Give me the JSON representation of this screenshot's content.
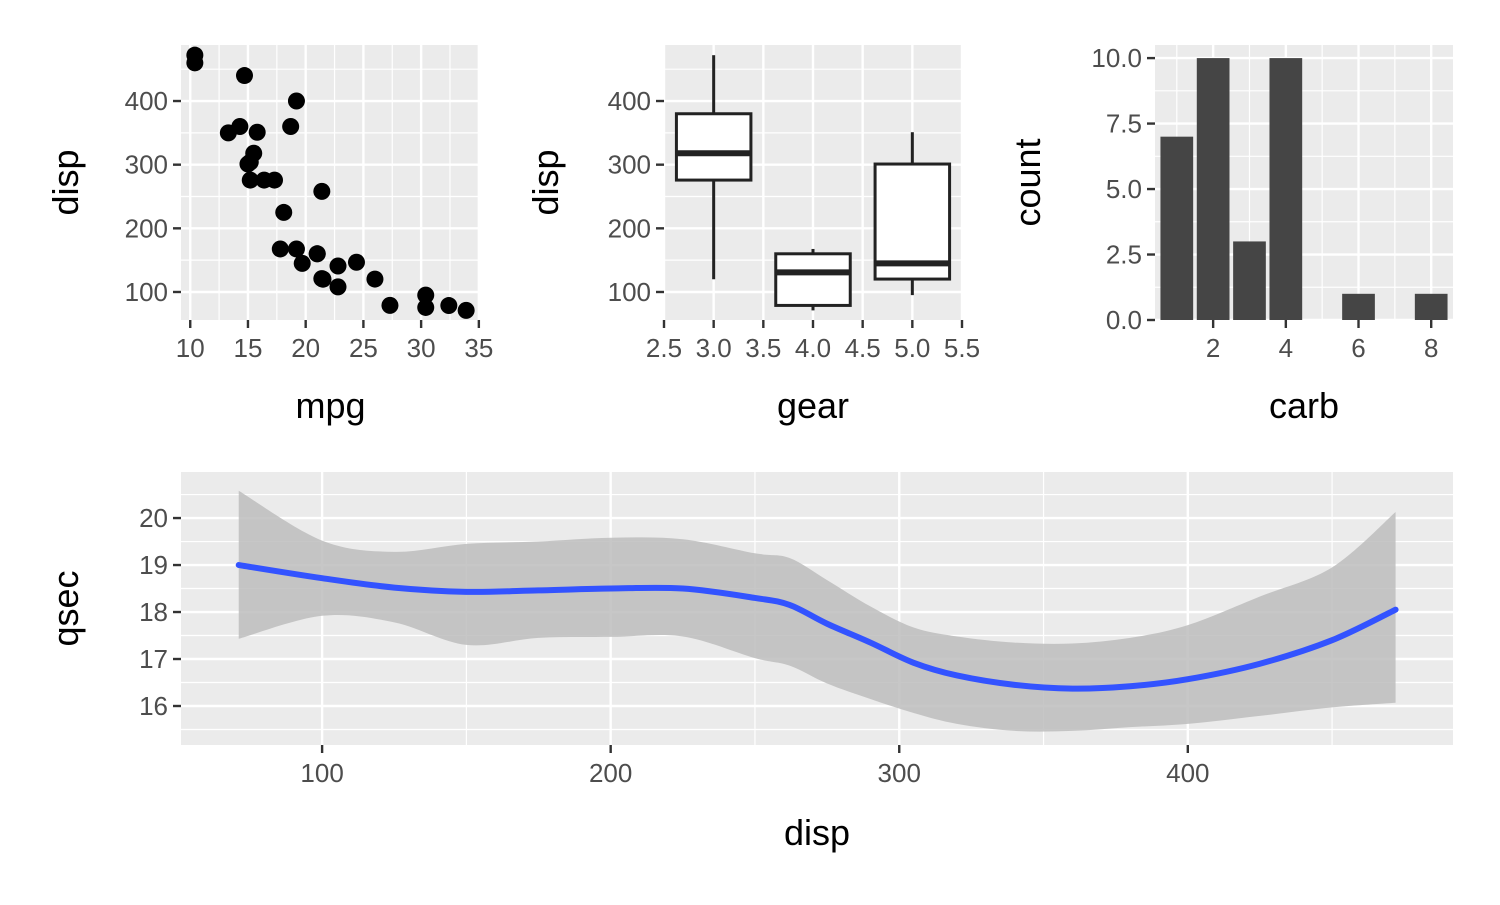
{
  "colors": {
    "panel": "#ebebeb",
    "grid": "#ffffff",
    "axis_text": "#4d4d4d",
    "title_text": "#000000",
    "point": "#000000",
    "box_stroke": "#222222",
    "bar_fill": "#454545",
    "smooth_line": "#3353ff",
    "ribbon": "#bdbdbd"
  },
  "chart_data": [
    {
      "type": "scatter",
      "xlabel": "mpg",
      "ylabel": "disp",
      "xlim": [
        9.2,
        35.1
      ],
      "ylim": [
        56,
        488
      ],
      "xticks": [
        10,
        15,
        20,
        25,
        30,
        35
      ],
      "xtick_labels": [
        "10",
        "15",
        "20",
        "25",
        "30",
        "35"
      ],
      "yticks": [
        100,
        200,
        300,
        400
      ],
      "ytick_labels": [
        "100",
        "200",
        "300",
        "400"
      ],
      "points": [
        [
          21.0,
          160
        ],
        [
          21.0,
          160
        ],
        [
          22.8,
          108
        ],
        [
          21.4,
          258
        ],
        [
          18.7,
          360
        ],
        [
          18.1,
          225
        ],
        [
          14.3,
          360
        ],
        [
          24.4,
          146.7
        ],
        [
          22.8,
          140.8
        ],
        [
          19.2,
          167.6
        ],
        [
          17.8,
          167.6
        ],
        [
          16.4,
          275.8
        ],
        [
          17.3,
          275.8
        ],
        [
          15.2,
          275.8
        ],
        [
          10.4,
          472
        ],
        [
          10.4,
          460
        ],
        [
          14.7,
          440
        ],
        [
          32.4,
          78.7
        ],
        [
          30.4,
          75.7
        ],
        [
          33.9,
          71.1
        ],
        [
          21.5,
          120.1
        ],
        [
          15.5,
          318
        ],
        [
          15.2,
          304
        ],
        [
          13.3,
          350
        ],
        [
          19.2,
          400
        ],
        [
          27.3,
          79
        ],
        [
          26.0,
          120.3
        ],
        [
          30.4,
          95.1
        ],
        [
          15.8,
          351
        ],
        [
          19.7,
          145
        ],
        [
          15.0,
          301
        ],
        [
          21.4,
          121
        ]
      ]
    },
    {
      "type": "box",
      "xlabel": "gear",
      "ylabel": "disp",
      "xlim": [
        2.5,
        5.5
      ],
      "ylim": [
        56,
        488
      ],
      "xticks": [
        2.5,
        3.0,
        3.5,
        4.0,
        4.5,
        5.0,
        5.5
      ],
      "xtick_labels": [
        "2.5",
        "3.0",
        "3.5",
        "4.0",
        "4.5",
        "5.0",
        "5.5"
      ],
      "yticks": [
        100,
        200,
        300,
        400
      ],
      "ytick_labels": [
        "100",
        "200",
        "300",
        "400"
      ],
      "box_width": 0.75,
      "boxes": [
        {
          "x": 3,
          "lower": 120.1,
          "q1": 275.8,
          "median": 318,
          "q3": 380,
          "upper": 472
        },
        {
          "x": 4,
          "lower": 71.1,
          "q1": 78.9,
          "median": 130.9,
          "q3": 160,
          "upper": 167.6
        },
        {
          "x": 5,
          "lower": 95.1,
          "q1": 120.3,
          "median": 145,
          "q3": 301,
          "upper": 351
        }
      ]
    },
    {
      "type": "bar",
      "xlabel": "carb",
      "ylabel": "count",
      "xlim": [
        0.4,
        8.6
      ],
      "ylim": [
        0,
        10.5
      ],
      "xticks": [
        2,
        4,
        6,
        8
      ],
      "xtick_labels": [
        "2",
        "4",
        "6",
        "8"
      ],
      "yticks": [
        0,
        2.5,
        5,
        7.5,
        10
      ],
      "ytick_labels": [
        "0.0",
        "2.5",
        "5.0",
        "7.5",
        "10.0"
      ],
      "bar_width": 0.9,
      "categories": [
        1,
        2,
        3,
        4,
        6,
        8
      ],
      "values": [
        7,
        10,
        3,
        10,
        1,
        1
      ]
    },
    {
      "type": "line",
      "xlabel": "disp",
      "ylabel": "qsec",
      "xlim": [
        51.1,
        491.9
      ],
      "ylim": [
        15.17,
        20.98
      ],
      "xticks": [
        100,
        200,
        300,
        400
      ],
      "xtick_labels": [
        "100",
        "200",
        "300",
        "400"
      ],
      "yticks": [
        16,
        17,
        18,
        19,
        20
      ],
      "ytick_labels": [
        "16",
        "17",
        "18",
        "19",
        "20"
      ],
      "x": [
        71.1,
        100,
        125,
        150,
        175,
        200,
        225,
        250,
        262,
        275,
        290,
        305,
        320,
        340,
        360,
        380,
        400,
        425,
        450,
        472
      ],
      "y": [
        19.0,
        18.72,
        18.52,
        18.43,
        18.46,
        18.5,
        18.5,
        18.3,
        18.15,
        17.75,
        17.35,
        16.92,
        16.65,
        16.45,
        16.37,
        16.42,
        16.57,
        16.9,
        17.4,
        18.05
      ],
      "lower": [
        17.43,
        17.92,
        17.78,
        17.3,
        17.45,
        17.47,
        17.48,
        17.02,
        16.86,
        16.48,
        16.15,
        15.85,
        15.62,
        15.47,
        15.47,
        15.55,
        15.62,
        15.79,
        15.97,
        16.07
      ],
      "upper": [
        20.58,
        19.52,
        19.28,
        19.45,
        19.5,
        19.58,
        19.55,
        19.25,
        19.15,
        18.68,
        18.12,
        17.67,
        17.48,
        17.35,
        17.33,
        17.45,
        17.72,
        18.33,
        18.95,
        20.13
      ]
    }
  ]
}
